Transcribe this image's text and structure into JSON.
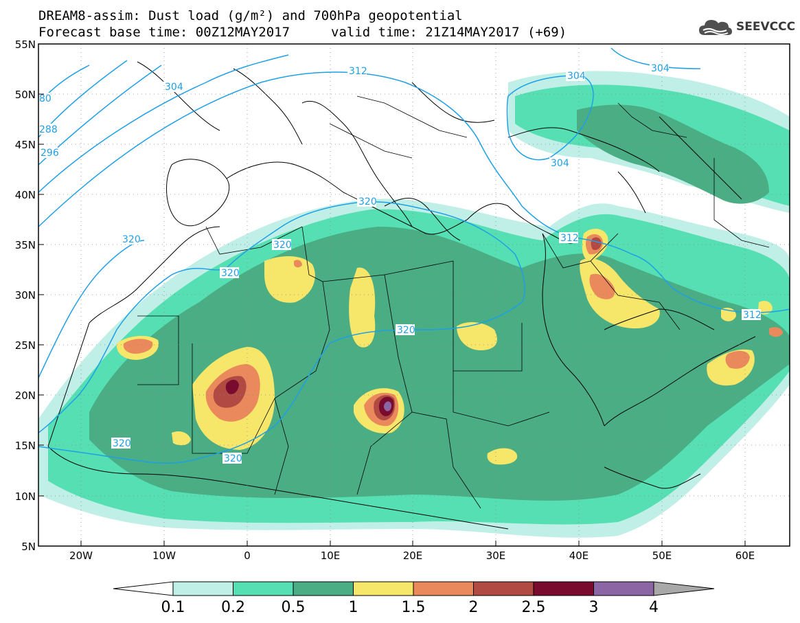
{
  "header": {
    "title_line1": "DREAM8-assim: Dust load (g/m²) and 700hPa geopotential",
    "title_line2": "Forecast base time: 00Z12MAY2017",
    "valid_time": "valid time: 21Z14MAY2017 (+69)"
  },
  "logo": {
    "text": "SEEVCCC",
    "icon": "cloud-icon"
  },
  "map": {
    "lat_labels": [
      "55N",
      "50N",
      "45N",
      "40N",
      "35N",
      "30N",
      "25N",
      "20N",
      "15N",
      "10N",
      "5N"
    ],
    "lon_labels": [
      "20W",
      "10W",
      "0",
      "10E",
      "20E",
      "30E",
      "40E",
      "50E",
      "60E"
    ],
    "contour_labels": [
      "80",
      "288",
      "296",
      "304",
      "312",
      "304",
      "304",
      "320",
      "320",
      "320",
      "320",
      "320",
      "320",
      "312",
      "312"
    ]
  },
  "colorbar": {
    "labels": [
      "0.1",
      "0.2",
      "0.5",
      "1",
      "1.5",
      "2",
      "2.5",
      "3",
      "4"
    ],
    "colors": [
      "#bfefe6",
      "#55dfb2",
      "#4aad83",
      "#f6e66a",
      "#ea8a5c",
      "#b04a42",
      "#780b2e",
      "#8c65a5"
    ],
    "end_low": "#ffffff",
    "end_high": "#a8a8a8"
  }
}
